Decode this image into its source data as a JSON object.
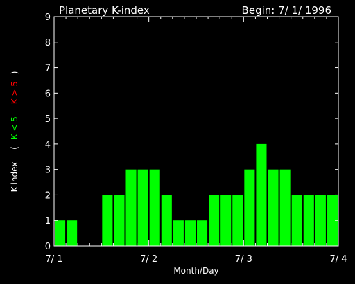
{
  "header": {
    "title": "Planetary K-index",
    "begin": "Begin: 7/ 1/ 1996"
  },
  "colors": {
    "background": "#000000",
    "foreground": "#ffffff",
    "bar": "#00ff00",
    "legend_low": "#00ff00",
    "legend_high": "#ff0000"
  },
  "chart_data": {
    "type": "bar",
    "title": "Planetary K-index",
    "subtitle": "Begin: 7/ 1/ 1996",
    "xlabel": "Month/Day",
    "ylabel": "K-index",
    "legend": {
      "open": "(",
      "low_label": "K < 5",
      "high_label": "K > 5",
      "close": ")"
    },
    "ylim": [
      0,
      9
    ],
    "yticks": [
      "0",
      "1",
      "2",
      "3",
      "4",
      "5",
      "6",
      "7",
      "8",
      "9"
    ],
    "xticks": [
      {
        "label": "7/ 1",
        "day": 0
      },
      {
        "label": "7/ 2",
        "day": 1
      },
      {
        "label": "7/ 3",
        "day": 2
      },
      {
        "label": "7/ 4",
        "day": 3
      }
    ],
    "interval_hours": 3,
    "values": [
      1,
      1,
      0,
      0,
      2,
      2,
      3,
      3,
      3,
      2,
      1,
      1,
      1,
      2,
      2,
      2,
      3,
      4,
      3,
      3,
      2,
      2,
      2,
      2
    ],
    "grid": false
  }
}
